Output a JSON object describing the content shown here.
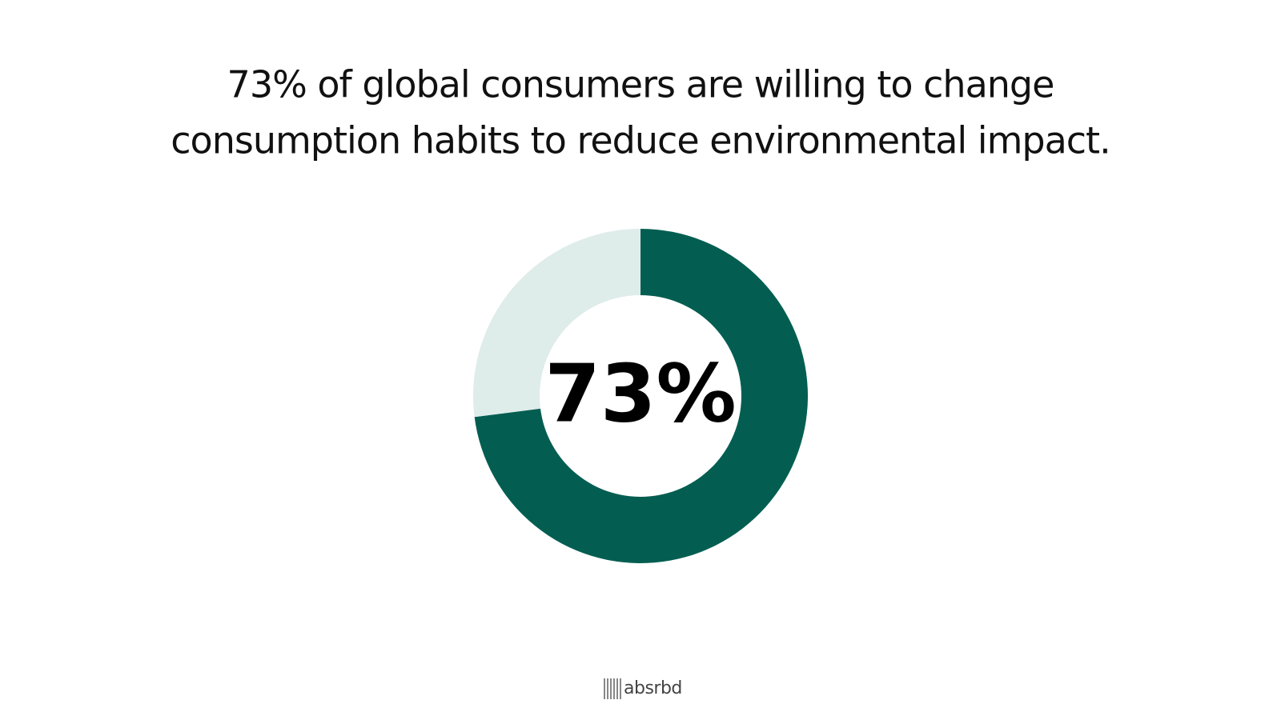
{
  "chart_data": {
    "type": "donut",
    "title": [
      "73% of global consumers are willing to change",
      "consumption habits to reduce environmental impact."
    ],
    "values": [
      73,
      27
    ],
    "value_labels": [
      "73%",
      null
    ],
    "colors": [
      "#035e51",
      "#deecea"
    ]
  },
  "footer": {
    "brand": "absrbd"
  }
}
